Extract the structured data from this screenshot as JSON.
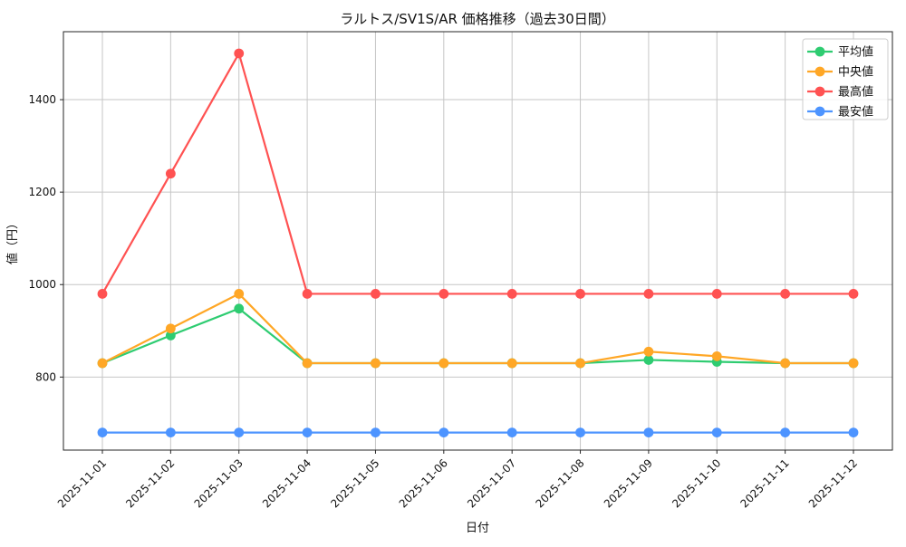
{
  "chart_data": {
    "type": "line",
    "title": "ラルトス/SV1S/AR 価格推移（過去30日間）",
    "xlabel": "日付",
    "ylabel": "値（円）",
    "x": [
      "2025-11-01",
      "2025-11-02",
      "2025-11-03",
      "2025-11-04",
      "2025-11-05",
      "2025-11-06",
      "2025-11-07",
      "2025-11-08",
      "2025-11-09",
      "2025-11-10",
      "2025-11-11",
      "2025-11-12"
    ],
    "series": [
      {
        "id": "average",
        "name": "平均値",
        "color": "#2ecc71",
        "values": [
          830,
          890,
          948,
          830,
          830,
          830,
          830,
          830,
          837,
          833,
          830,
          830
        ]
      },
      {
        "id": "median",
        "name": "中央値",
        "color": "#ffa726",
        "values": [
          830,
          905,
          980,
          830,
          830,
          830,
          830,
          830,
          855,
          845,
          830,
          830
        ]
      },
      {
        "id": "highest",
        "name": "最高値",
        "color": "#ff5252",
        "values": [
          980,
          1240,
          1500,
          980,
          980,
          980,
          980,
          980,
          980,
          980,
          980,
          980
        ]
      },
      {
        "id": "lowest",
        "name": "最安値",
        "color": "#4d94ff",
        "values": [
          680,
          680,
          680,
          680,
          680,
          680,
          680,
          680,
          680,
          680,
          680,
          680
        ]
      }
    ],
    "yticks": [
      800,
      1000,
      1200,
      1400
    ],
    "ylim": [
      642,
      1547
    ],
    "grid": true,
    "legend_position": "upper right",
    "colors": {
      "grid": "#c6c6c6",
      "spine": "#262626",
      "legend_border": "#cccccc",
      "legend_bg_alpha": 0.8
    }
  }
}
